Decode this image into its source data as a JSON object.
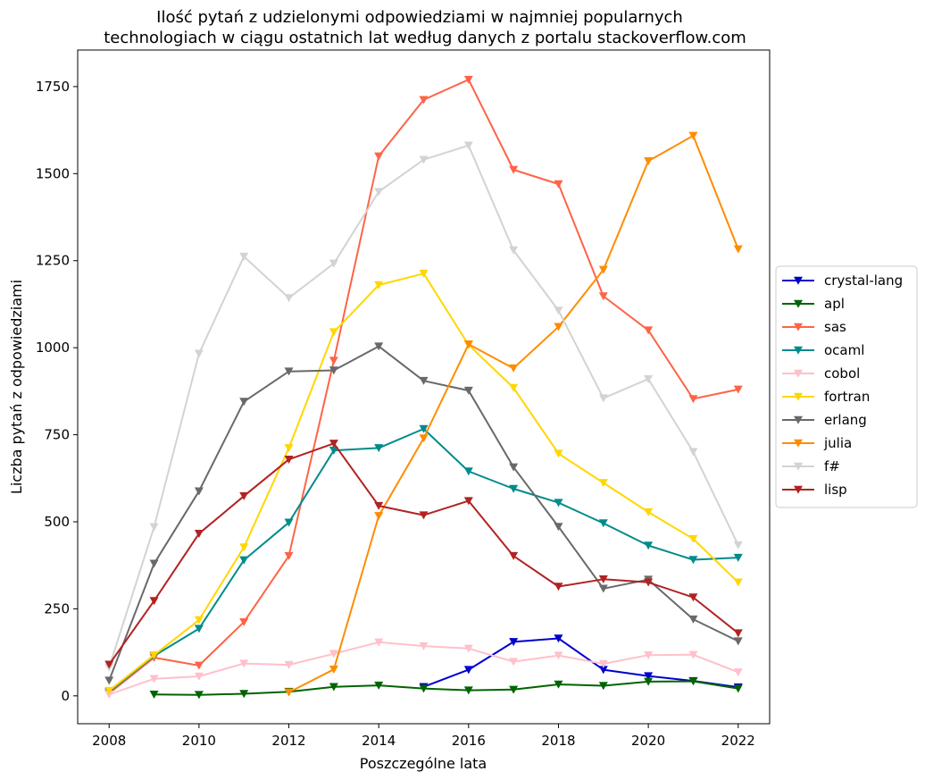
{
  "chart_data": {
    "type": "line",
    "title_lines": [
      "Ilość pytań z udzielonymi odpowiedziami w najmniej popularnych",
      "technologiach w ciągu ostatnich lat według danych z portalu stackoverflow.com"
    ],
    "xlabel": "Poszczególne lata",
    "ylabel": "Liczba pytań z odpowiedziami",
    "xlim": [
      2007.3,
      2022.7
    ],
    "ylim": [
      -80,
      1855
    ],
    "xticks": [
      2008,
      2010,
      2012,
      2014,
      2016,
      2018,
      2020,
      2022
    ],
    "yticks": [
      0,
      250,
      500,
      750,
      1000,
      1250,
      1500,
      1750
    ],
    "marker": "triangle-down",
    "legend_position": "center-right-outside",
    "series": [
      {
        "name": "crystal-lang",
        "color": "#0000cd",
        "points": [
          [
            2015,
            26
          ],
          [
            2016,
            75
          ],
          [
            2017,
            155
          ],
          [
            2018,
            165
          ],
          [
            2019,
            75
          ],
          [
            2020,
            57
          ],
          [
            2021,
            43
          ],
          [
            2022,
            25
          ]
        ]
      },
      {
        "name": "apl",
        "color": "#006400",
        "points": [
          [
            2009,
            4
          ],
          [
            2010,
            3
          ],
          [
            2011,
            6
          ],
          [
            2012,
            12
          ],
          [
            2013,
            26
          ],
          [
            2014,
            30
          ],
          [
            2015,
            21
          ],
          [
            2016,
            16
          ],
          [
            2017,
            18
          ],
          [
            2018,
            33
          ],
          [
            2019,
            29
          ],
          [
            2020,
            41
          ],
          [
            2021,
            42
          ],
          [
            2022,
            21
          ]
        ]
      },
      {
        "name": "sas",
        "color": "#ff6347",
        "points": [
          [
            2008,
            7
          ],
          [
            2009,
            110
          ],
          [
            2010,
            87
          ],
          [
            2011,
            212
          ],
          [
            2012,
            402
          ],
          [
            2013,
            963
          ],
          [
            2014,
            1550
          ],
          [
            2015,
            1712
          ],
          [
            2016,
            1770
          ],
          [
            2017,
            1511
          ],
          [
            2018,
            1470
          ],
          [
            2019,
            1148
          ],
          [
            2020,
            1050
          ],
          [
            2021,
            853
          ],
          [
            2022,
            880
          ]
        ]
      },
      {
        "name": "ocaml",
        "color": "#008b8b",
        "points": [
          [
            2008,
            12
          ],
          [
            2009,
            115
          ],
          [
            2010,
            193
          ],
          [
            2011,
            390
          ],
          [
            2012,
            498
          ],
          [
            2013,
            705
          ],
          [
            2014,
            712
          ],
          [
            2015,
            767
          ],
          [
            2016,
            645
          ],
          [
            2017,
            595
          ],
          [
            2018,
            555
          ],
          [
            2019,
            496
          ],
          [
            2020,
            432
          ],
          [
            2021,
            391
          ],
          [
            2022,
            397
          ]
        ]
      },
      {
        "name": "cobol",
        "color": "#ffc0cb",
        "points": [
          [
            2008,
            4
          ],
          [
            2009,
            49
          ],
          [
            2010,
            56
          ],
          [
            2011,
            93
          ],
          [
            2012,
            89
          ],
          [
            2013,
            121
          ],
          [
            2014,
            154
          ],
          [
            2015,
            143
          ],
          [
            2016,
            136
          ],
          [
            2017,
            98
          ],
          [
            2018,
            116
          ],
          [
            2019,
            92
          ],
          [
            2020,
            117
          ],
          [
            2021,
            118
          ],
          [
            2022,
            68
          ]
        ]
      },
      {
        "name": "fortran",
        "color": "#ffd700",
        "points": [
          [
            2008,
            15
          ],
          [
            2009,
            117
          ],
          [
            2010,
            218
          ],
          [
            2011,
            427
          ],
          [
            2012,
            712
          ],
          [
            2013,
            1045
          ],
          [
            2014,
            1180
          ],
          [
            2015,
            1213
          ],
          [
            2016,
            1008
          ],
          [
            2017,
            885
          ],
          [
            2018,
            696
          ],
          [
            2019,
            612
          ],
          [
            2020,
            528
          ],
          [
            2021,
            451
          ],
          [
            2022,
            326
          ]
        ]
      },
      {
        "name": "erlang",
        "color": "#696969",
        "points": [
          [
            2008,
            44
          ],
          [
            2009,
            380
          ],
          [
            2010,
            588
          ],
          [
            2011,
            845
          ],
          [
            2012,
            932
          ],
          [
            2013,
            935
          ],
          [
            2014,
            1004
          ],
          [
            2015,
            905
          ],
          [
            2016,
            877
          ],
          [
            2017,
            657
          ],
          [
            2018,
            486
          ],
          [
            2019,
            308
          ],
          [
            2020,
            334
          ],
          [
            2021,
            220
          ],
          [
            2022,
            157
          ]
        ]
      },
      {
        "name": "julia",
        "color": "#ff8c00",
        "points": [
          [
            2012,
            10
          ],
          [
            2013,
            76
          ],
          [
            2014,
            517
          ],
          [
            2015,
            740
          ],
          [
            2016,
            1010
          ],
          [
            2017,
            941
          ],
          [
            2018,
            1060
          ],
          [
            2019,
            1224
          ],
          [
            2020,
            1536
          ],
          [
            2021,
            1609
          ],
          [
            2022,
            1283
          ]
        ]
      },
      {
        "name": "f#",
        "color": "#d3d3d3",
        "points": [
          [
            2008,
            82
          ],
          [
            2009,
            485
          ],
          [
            2010,
            983
          ],
          [
            2011,
            1262
          ],
          [
            2012,
            1143
          ],
          [
            2013,
            1242
          ],
          [
            2014,
            1448
          ],
          [
            2015,
            1540
          ],
          [
            2016,
            1581
          ],
          [
            2017,
            1280
          ],
          [
            2018,
            1107
          ],
          [
            2019,
            855
          ],
          [
            2020,
            910
          ],
          [
            2021,
            701
          ],
          [
            2022,
            433
          ]
        ]
      },
      {
        "name": "lisp",
        "color": "#b22222",
        "points": [
          [
            2008,
            90
          ],
          [
            2009,
            273
          ],
          [
            2010,
            466
          ],
          [
            2011,
            574
          ],
          [
            2012,
            679
          ],
          [
            2013,
            725
          ],
          [
            2014,
            546
          ],
          [
            2015,
            519
          ],
          [
            2016,
            560
          ],
          [
            2017,
            402
          ],
          [
            2018,
            314
          ],
          [
            2019,
            335
          ],
          [
            2020,
            326
          ],
          [
            2021,
            283
          ],
          [
            2022,
            180
          ]
        ]
      }
    ]
  }
}
